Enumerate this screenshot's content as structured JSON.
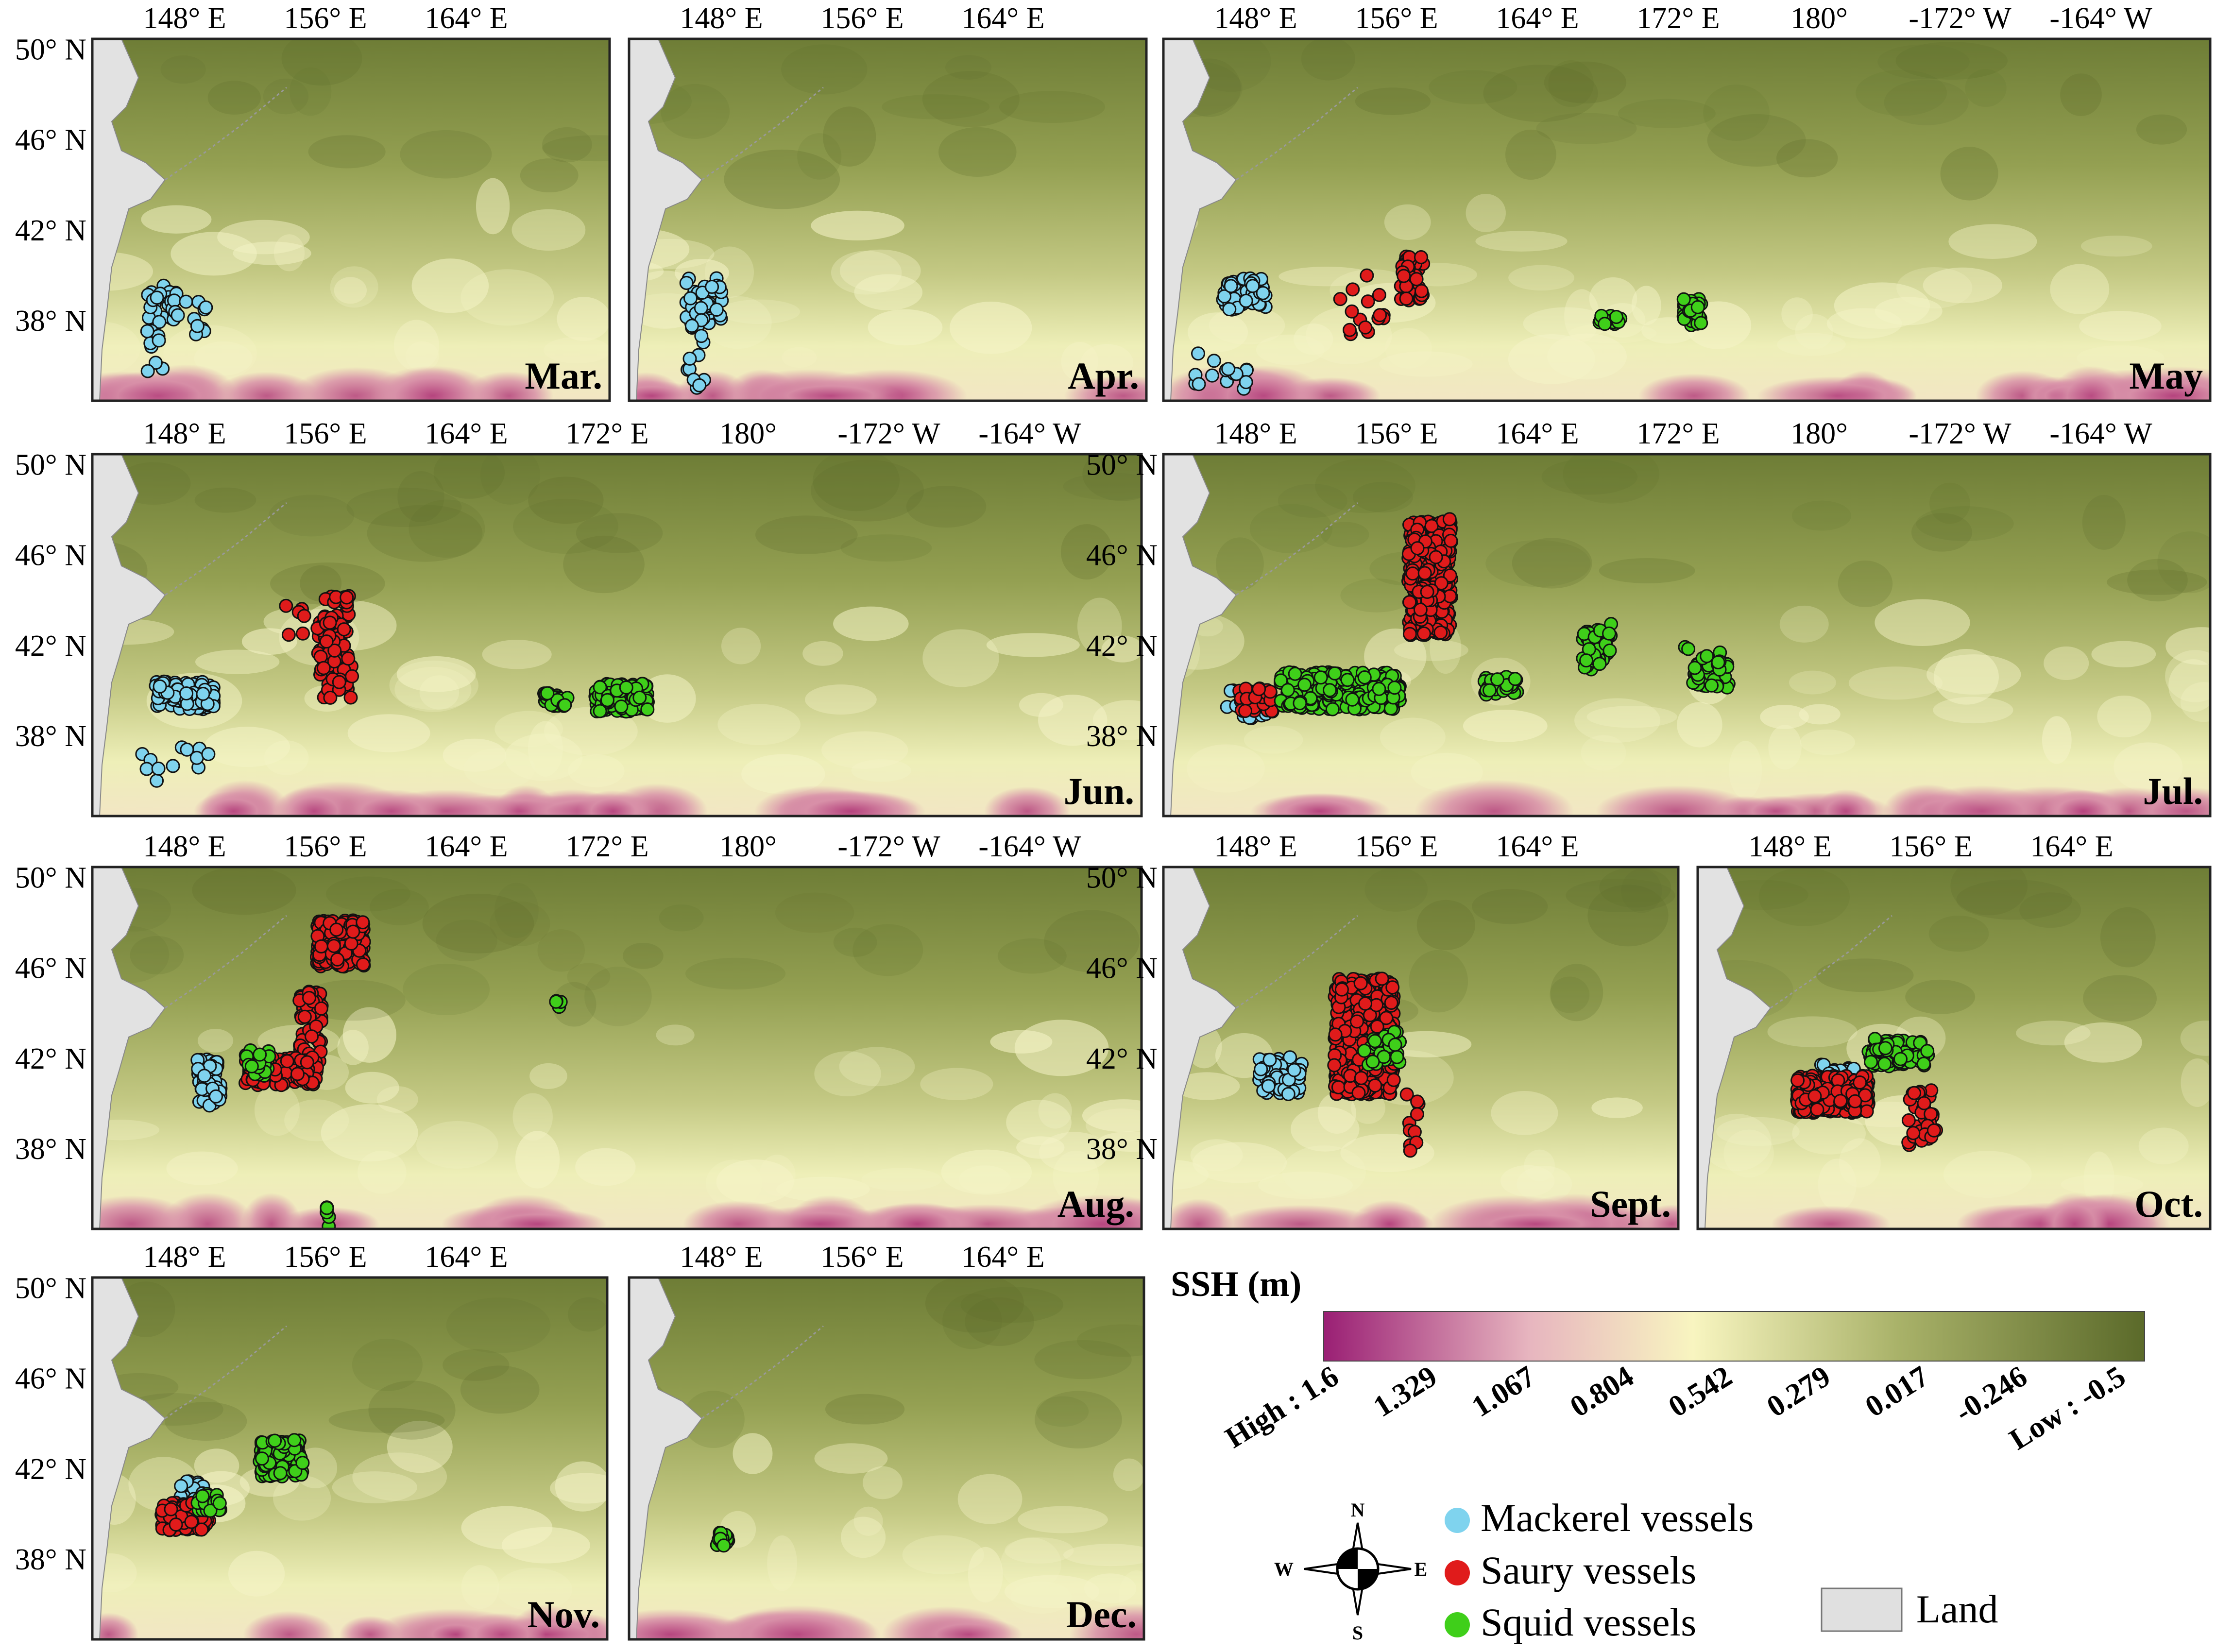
{
  "panels": [
    {
      "id": "mar",
      "label": "Mar.",
      "top_ticks": [
        "148° E",
        "156° E",
        "164° E"
      ],
      "lat_ticks": [
        "50° N",
        "46° N",
        "42° N",
        "38° N"
      ]
    },
    {
      "id": "apr",
      "label": "Apr.",
      "top_ticks": [
        "148° E",
        "156° E",
        "164° E"
      ]
    },
    {
      "id": "may",
      "label": "May",
      "top_ticks": [
        "148° E",
        "156° E",
        "164° E",
        "172° E",
        "180°",
        "-172° W",
        "-164° W"
      ]
    },
    {
      "id": "jun",
      "label": "Jun.",
      "top_ticks": [
        "148° E",
        "156° E",
        "164° E",
        "172° E",
        "180°",
        "-172° W",
        "-164° W"
      ],
      "lat_ticks": [
        "50° N",
        "46° N",
        "42° N",
        "38° N"
      ]
    },
    {
      "id": "jul",
      "label": "Jul.",
      "top_ticks": [
        "148° E",
        "156° E",
        "164° E",
        "172° E",
        "180°",
        "-172° W",
        "-164° W"
      ],
      "lat_ticks": [
        "50° N",
        "46° N",
        "42° N",
        "38° N"
      ]
    },
    {
      "id": "aug",
      "label": "Aug.",
      "top_ticks": [
        "148° E",
        "156° E",
        "164° E",
        "172° E",
        "180°",
        "-172° W",
        "-164° W"
      ],
      "lat_ticks": [
        "50° N",
        "46° N",
        "42° N",
        "38° N"
      ]
    },
    {
      "id": "sep",
      "label": "Sept.",
      "top_ticks": [
        "148° E",
        "156° E",
        "164° E"
      ],
      "lat_ticks": [
        "50° N",
        "46° N",
        "42° N",
        "38° N"
      ]
    },
    {
      "id": "oct",
      "label": "Oct.",
      "top_ticks": [
        "148° E",
        "156° E",
        "164° E"
      ]
    },
    {
      "id": "nov",
      "label": "Nov.",
      "top_ticks": [
        "148° E",
        "156° E",
        "164° E"
      ],
      "lat_ticks": [
        "50° N",
        "46° N",
        "42° N",
        "38° N"
      ]
    },
    {
      "id": "dec",
      "label": "Dec.",
      "top_ticks": [
        "148° E",
        "156° E",
        "164° E"
      ]
    }
  ],
  "colorbar": {
    "title": "SSH (m)",
    "tick_labels": [
      "High : 1.6",
      "1.329",
      "1.067",
      "0.804",
      "0.542",
      "0.279",
      "0.017",
      "-0.246",
      "Low : -0.5"
    ],
    "colors": [
      "#9a1f74",
      "#e7b5bf",
      "#f8f5c0",
      "#a9b269",
      "#5b6a2a"
    ]
  },
  "compass": {
    "n": "N",
    "s": "S",
    "e": "E",
    "w": "W"
  },
  "legend": {
    "items": [
      {
        "label": "Mackerel vessels",
        "color": "#7fd3ee"
      },
      {
        "label": "Saury vessels",
        "color": "#e01b1b"
      },
      {
        "label": "Squid vessels",
        "color": "#3fcf1a"
      }
    ],
    "land": {
      "label": "Land",
      "color": "#e0e0e0"
    }
  },
  "colors": {
    "ocean_deep": "#7d8b42",
    "ocean_mid": "#b0ba72",
    "ocean_light": "#eff0b5",
    "warm": "#d890a8",
    "hot": "#b4407c",
    "land": "#e2e2e2"
  }
}
